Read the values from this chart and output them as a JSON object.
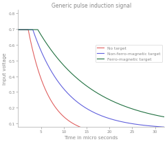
{
  "title": "Generic pulse induction signal",
  "xlabel": "Time in micro seconds",
  "ylabel": "Input voltage",
  "xlim": [
    0,
    32
  ],
  "ylim": [
    0.08,
    0.82
  ],
  "yticks": [
    0.1,
    0.2,
    0.3,
    0.4,
    0.5,
    0.6,
    0.7,
    0.8
  ],
  "xticks": [
    5,
    10,
    15,
    20,
    25,
    30
  ],
  "curves": [
    {
      "label": "No target",
      "color": "#e06060",
      "flat_end": 2.2,
      "decay_tau": 4.5,
      "flat_val": 0.695,
      "asymptote": 0.025
    },
    {
      "label": "Non-ferro-magnetic target",
      "color": "#6060dd",
      "flat_end": 3.2,
      "decay_tau": 7.5,
      "flat_val": 0.695,
      "asymptote": 0.065
    },
    {
      "label": "Ferro-magnetic target",
      "color": "#207040",
      "flat_end": 4.3,
      "decay_tau": 12.5,
      "flat_val": 0.695,
      "asymptote": 0.075
    }
  ],
  "bg_color": "#ffffff",
  "fig_bg": "#ffffff",
  "title_color": "#888888",
  "axis_color": "#aaaaaa",
  "tick_color": "#888888",
  "label_color": "#888888"
}
